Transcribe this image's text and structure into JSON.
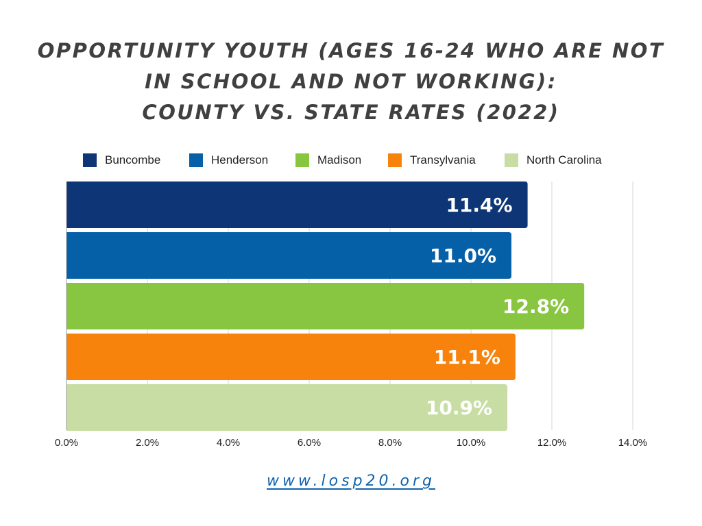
{
  "title_lines": [
    "OPPORTUNITY YOUTH (AGES 16-24 WHO ARE NOT",
    "IN SCHOOL AND NOT WORKING):",
    "COUNTY VS. STATE RATES (2022)"
  ],
  "footer": {
    "link": "www.losp20.org"
  },
  "chart_data": {
    "type": "bar",
    "orientation": "horizontal",
    "title": "OPPORTUNITY YOUTH (AGES 16-24 WHO ARE NOT IN SCHOOL AND NOT WORKING): COUNTY VS. STATE RATES (2022)",
    "xlabel": "",
    "ylabel": "",
    "xlim": [
      0,
      14
    ],
    "tick_step": 2,
    "tick_labels": [
      "0.0%",
      "2.0%",
      "4.0%",
      "6.0%",
      "8.0%",
      "10.0%",
      "12.0%",
      "14.0%"
    ],
    "grid": true,
    "legend_position": "top",
    "series": [
      {
        "name": "Buncombe",
        "value": 11.4,
        "label": "11.4%",
        "color": "#0e3576"
      },
      {
        "name": "Henderson",
        "value": 11.0,
        "label": "11.0%",
        "color": "#0560a8"
      },
      {
        "name": "Madison",
        "value": 12.8,
        "label": "12.8%",
        "color": "#88c540"
      },
      {
        "name": "Transylvania",
        "value": 11.1,
        "label": "11.1%",
        "color": "#f7830d"
      },
      {
        "name": "North Carolina",
        "value": 10.9,
        "label": "10.9%",
        "color": "#c7dda3"
      }
    ]
  }
}
